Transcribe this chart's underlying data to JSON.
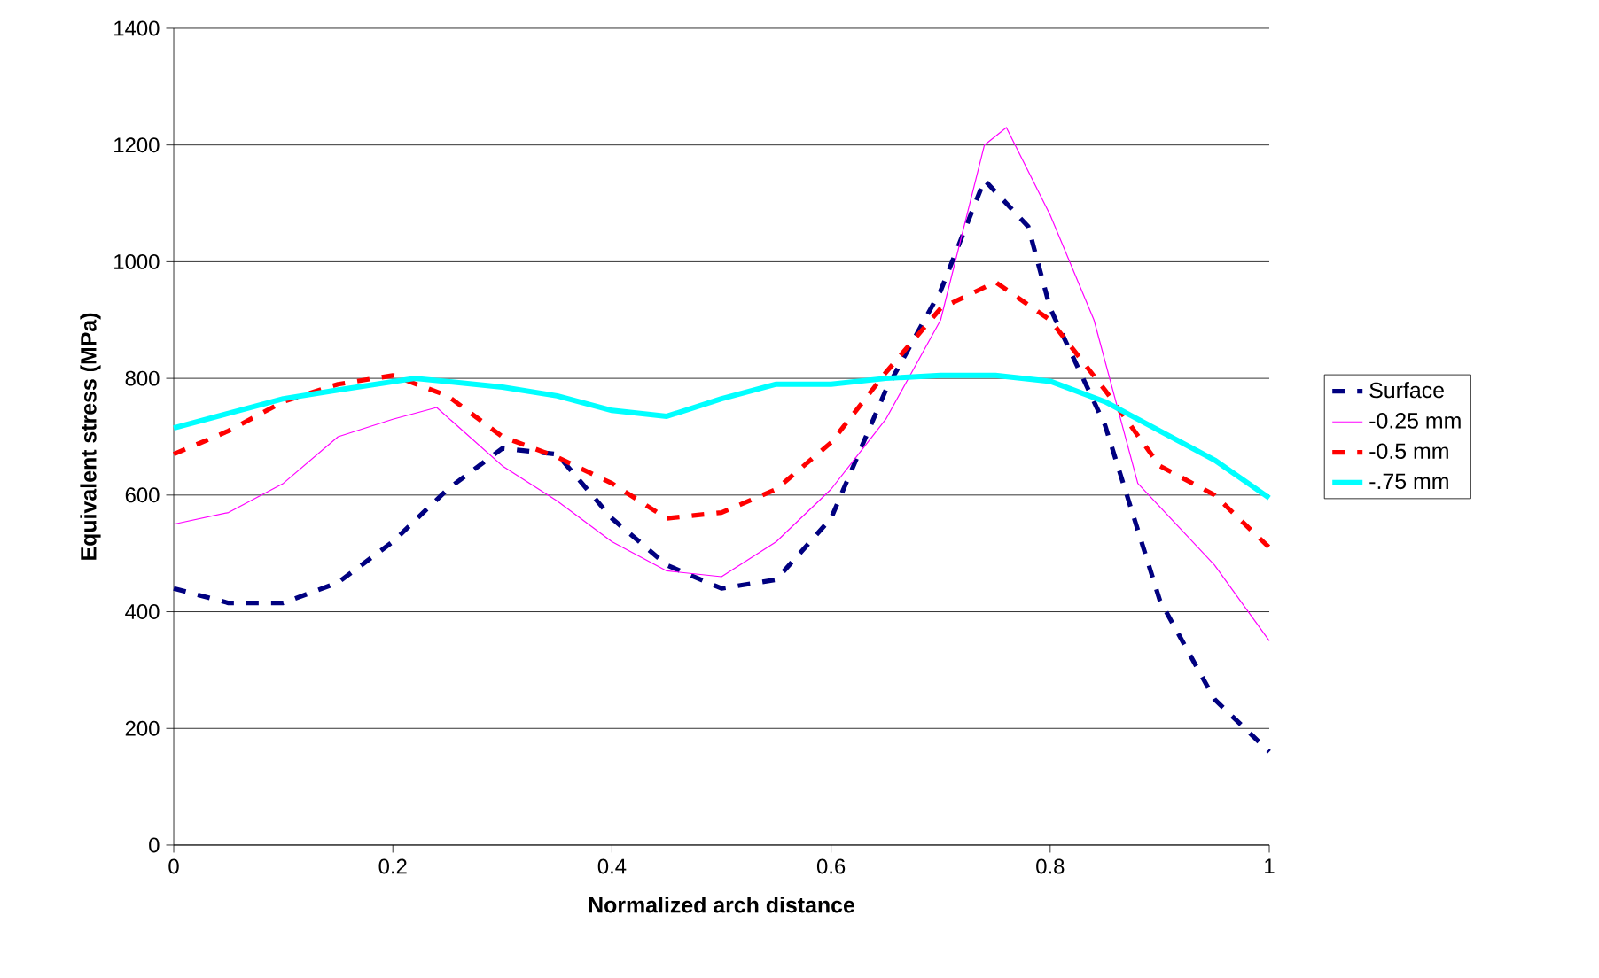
{
  "chart_data": {
    "type": "line",
    "xlabel": "Normalized arch distance",
    "ylabel": "Equivalent stress (MPa)",
    "xlim": [
      0,
      1
    ],
    "xticks": [
      0,
      0.2,
      0.4,
      0.6,
      0.8,
      1
    ],
    "ylim": [
      0,
      1400
    ],
    "yticks": [
      0,
      200,
      400,
      600,
      800,
      1000,
      1200,
      1400
    ],
    "grid": "y",
    "legend": "right",
    "marker": "none",
    "series": [
      {
        "name": "Surface",
        "color": "#000080",
        "line_style": "dashed",
        "x": [
          0,
          0.05,
          0.1,
          0.15,
          0.2,
          0.25,
          0.3,
          0.35,
          0.4,
          0.45,
          0.5,
          0.55,
          0.6,
          0.65,
          0.7,
          0.74,
          0.78,
          0.8,
          0.85,
          0.9,
          0.95,
          1.0
        ],
        "values": [
          440,
          415,
          415,
          450,
          520,
          610,
          680,
          670,
          560,
          480,
          440,
          455,
          560,
          780,
          950,
          1140,
          1060,
          920,
          720,
          420,
          250,
          160
        ]
      },
      {
        "name": "-0.25 mm",
        "color": "#ff00ff",
        "line_style": "solid",
        "x": [
          0,
          0.05,
          0.1,
          0.15,
          0.2,
          0.24,
          0.3,
          0.35,
          0.4,
          0.45,
          0.5,
          0.55,
          0.6,
          0.65,
          0.7,
          0.74,
          0.76,
          0.8,
          0.84,
          0.88,
          0.95,
          1.0
        ],
        "values": [
          550,
          570,
          620,
          700,
          730,
          750,
          650,
          590,
          520,
          470,
          460,
          520,
          610,
          730,
          900,
          1200,
          1230,
          1080,
          900,
          620,
          480,
          350
        ]
      },
      {
        "name": "-0.5 mm",
        "color": "#ff0000",
        "line_style": "dashed",
        "x": [
          0,
          0.05,
          0.1,
          0.15,
          0.2,
          0.25,
          0.3,
          0.35,
          0.4,
          0.45,
          0.5,
          0.55,
          0.6,
          0.65,
          0.7,
          0.75,
          0.8,
          0.85,
          0.9,
          0.95,
          1.0
        ],
        "values": [
          670,
          710,
          760,
          790,
          805,
          770,
          700,
          665,
          620,
          560,
          570,
          610,
          690,
          810,
          920,
          965,
          900,
          780,
          650,
          600,
          510
        ]
      },
      {
        "name": "-.75 mm",
        "color": "#00ffff",
        "line_style": "solid",
        "x": [
          0,
          0.05,
          0.1,
          0.15,
          0.22,
          0.3,
          0.35,
          0.4,
          0.45,
          0.5,
          0.55,
          0.6,
          0.65,
          0.7,
          0.75,
          0.8,
          0.85,
          0.9,
          0.95,
          1.0
        ],
        "values": [
          715,
          740,
          765,
          780,
          800,
          785,
          770,
          745,
          735,
          765,
          790,
          790,
          800,
          805,
          805,
          795,
          760,
          710,
          660,
          595
        ]
      }
    ]
  }
}
